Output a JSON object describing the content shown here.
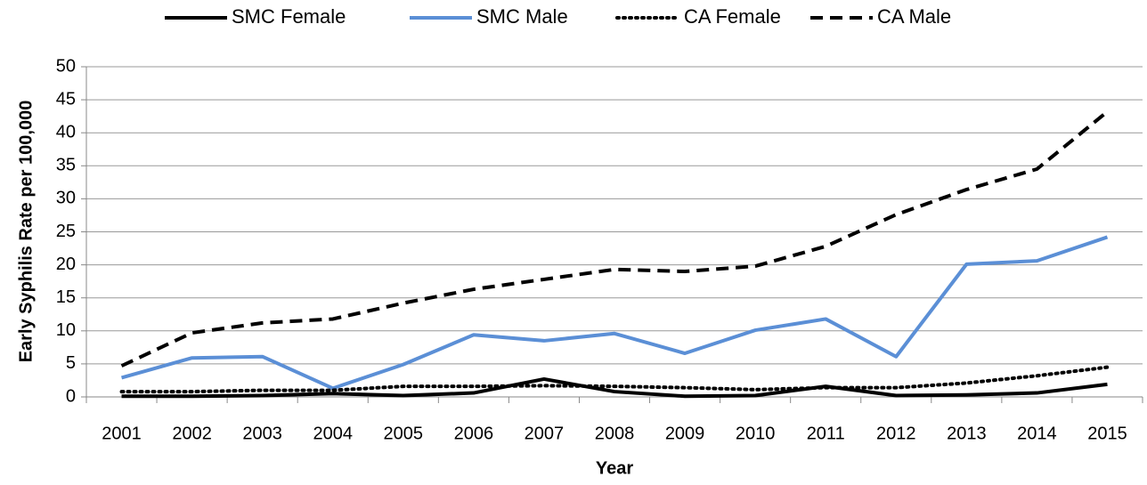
{
  "chart_data": {
    "type": "line",
    "x_label": "Year",
    "y_label": "Early Syphilis Rate per 100,000",
    "categories": [
      "2001",
      "2002",
      "2003",
      "2004",
      "2005",
      "2006",
      "2007",
      "2008",
      "2009",
      "2010",
      "2011",
      "2012",
      "2013",
      "2014",
      "2015"
    ],
    "series": [
      {
        "name": "SMC Female",
        "color": "#000000",
        "style": "solid",
        "values": [
          0.1,
          0.1,
          0.2,
          0.5,
          0.2,
          0.6,
          2.7,
          0.8,
          0.1,
          0.2,
          1.6,
          0.2,
          0.3,
          0.6,
          1.9
        ]
      },
      {
        "name": "SMC Male",
        "color": "#5b8fd6",
        "style": "solid",
        "values": [
          2.9,
          5.9,
          6.1,
          1.3,
          4.9,
          9.4,
          8.5,
          9.6,
          6.6,
          10.1,
          11.8,
          6.1,
          20.1,
          20.6,
          24.2
        ]
      },
      {
        "name": "CA Female",
        "color": "#000000",
        "style": "dotted",
        "values": [
          0.8,
          0.8,
          1.0,
          1.0,
          1.6,
          1.6,
          1.7,
          1.6,
          1.4,
          1.1,
          1.4,
          1.4,
          2.1,
          3.2,
          4.5
        ]
      },
      {
        "name": "CA Male",
        "color": "#000000",
        "style": "dashed",
        "values": [
          4.7,
          9.7,
          11.2,
          11.8,
          14.2,
          16.3,
          17.8,
          19.3,
          19.0,
          19.8,
          22.8,
          27.6,
          31.4,
          34.5,
          43.2
        ]
      }
    ],
    "ylim": [
      0,
      50
    ],
    "yticks": [
      0,
      5,
      10,
      15,
      20,
      25,
      30,
      35,
      40,
      45,
      50
    ],
    "grid": true,
    "legend": "top"
  }
}
